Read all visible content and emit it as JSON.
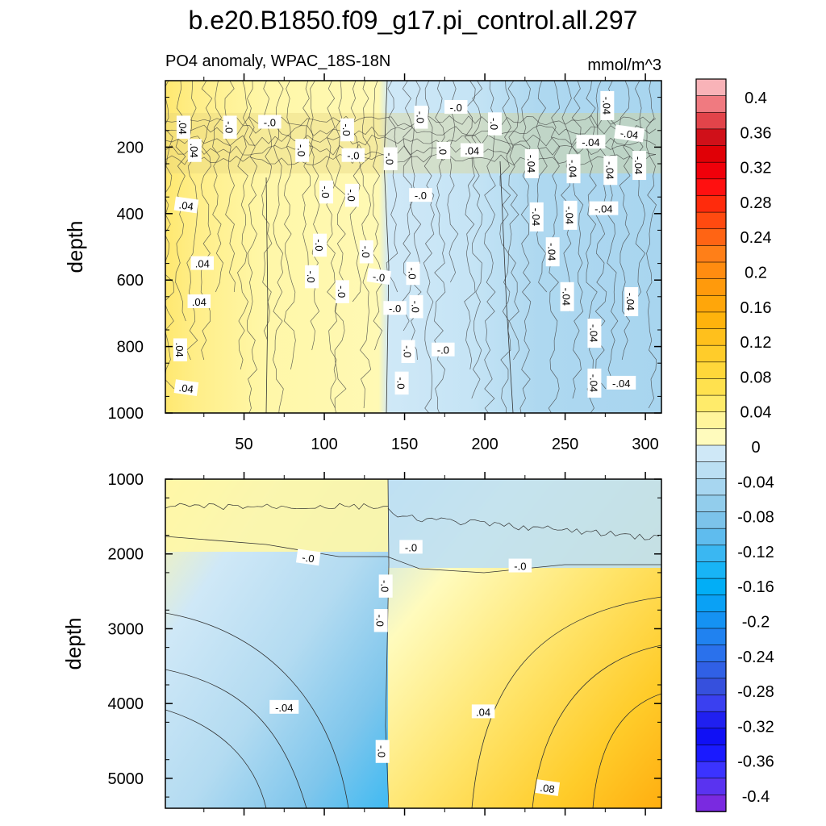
{
  "chart_data": {
    "type": "contour",
    "title": "b.e20.B1850.f09_g17.pi_control.all.297",
    "subtitle_left": "PO4 anomaly, WPAC_18S-18N",
    "subtitle_right": "mmol/m^3",
    "ylabel": "depth",
    "x_ticks": [
      "50",
      "100",
      "150",
      "200",
      "250",
      "300"
    ],
    "x_tick_values": [
      50,
      100,
      150,
      200,
      250,
      300
    ],
    "xlim": [
      1,
      310
    ],
    "panels": [
      {
        "name": "upper",
        "ylim": [
          0,
          1000
        ],
        "y_ticks": [
          "200",
          "400",
          "600",
          "800",
          "1000"
        ],
        "y_tick_values": [
          200,
          400,
          600,
          800,
          1000
        ],
        "contour_labels": [
          {
            "text": ".04",
            "x": 12,
            "y": 140
          },
          {
            "text": "-.0",
            "x": 41,
            "y": 140
          },
          {
            "text": "-.0",
            "x": 66,
            "y": 125
          },
          {
            "text": "-.0",
            "x": 114,
            "y": 148
          },
          {
            "text": "-.0",
            "x": 160,
            "y": 110
          },
          {
            "text": "-.0",
            "x": 182,
            "y": 80
          },
          {
            "text": "-.0",
            "x": 206,
            "y": 130
          },
          {
            "text": "-.04",
            "x": 276,
            "y": 75
          },
          {
            "text": "-.04",
            "x": 290,
            "y": 160
          },
          {
            "text": ".04",
            "x": 19,
            "y": 210
          },
          {
            "text": "-.0",
            "x": 86,
            "y": 210
          },
          {
            "text": "-.0",
            "x": 118,
            "y": 225
          },
          {
            "text": "-.0",
            "x": 141,
            "y": 235
          },
          {
            "text": ".0",
            "x": 174,
            "y": 210
          },
          {
            "text": ".04",
            "x": 192,
            "y": 210
          },
          {
            "text": "-.04",
            "x": 229,
            "y": 250
          },
          {
            "text": "-.04",
            "x": 255,
            "y": 265
          },
          {
            "text": "-.04",
            "x": 266,
            "y": 185
          },
          {
            "text": "-.04",
            "x": 278,
            "y": 270
          },
          {
            "text": "-.04",
            "x": 296,
            "y": 255
          },
          {
            "text": ".04",
            "x": 14,
            "y": 375
          },
          {
            "text": "-.0",
            "x": 101,
            "y": 335
          },
          {
            "text": "-.0",
            "x": 117,
            "y": 345
          },
          {
            "text": "-.0",
            "x": 160,
            "y": 345
          },
          {
            "text": "-.04",
            "x": 232,
            "y": 410
          },
          {
            "text": "-.04",
            "x": 253,
            "y": 405
          },
          {
            "text": "-.04",
            "x": 274,
            "y": 385
          },
          {
            "text": "-.0",
            "x": 97,
            "y": 495
          },
          {
            "text": "-.0",
            "x": 126,
            "y": 515
          },
          {
            "text": ".04",
            "x": 24,
            "y": 550
          },
          {
            "text": "-.04",
            "x": 242,
            "y": 515
          },
          {
            "text": "-.0",
            "x": 92,
            "y": 590
          },
          {
            "text": "-.0",
            "x": 134,
            "y": 590
          },
          {
            "text": "-.0",
            "x": 155,
            "y": 580
          },
          {
            "text": "-.0",
            "x": 111,
            "y": 635
          },
          {
            "text": ".04",
            "x": 22,
            "y": 665
          },
          {
            "text": "-.04",
            "x": 251,
            "y": 650
          },
          {
            "text": "-.04",
            "x": 291,
            "y": 665
          },
          {
            "text": "-.0",
            "x": 144,
            "y": 685
          },
          {
            "text": "-.0",
            "x": 157,
            "y": 680
          },
          {
            "text": ".04",
            "x": 10,
            "y": 810
          },
          {
            "text": "-.0",
            "x": 174,
            "y": 810
          },
          {
            "text": "-.04",
            "x": 268,
            "y": 760
          },
          {
            "text": "-.0",
            "x": 152,
            "y": 815
          },
          {
            "text": ".04",
            "x": 14,
            "y": 925
          },
          {
            "text": "-.0",
            "x": 148,
            "y": 910
          },
          {
            "text": "-.04",
            "x": 268,
            "y": 910
          },
          {
            "text": "-.04",
            "x": 285,
            "y": 910
          }
        ]
      },
      {
        "name": "lower",
        "ylim": [
          1000,
          5400
        ],
        "y_ticks": [
          "1000",
          "2000",
          "3000",
          "4000",
          "5000"
        ],
        "y_tick_values": [
          1000,
          2000,
          3000,
          4000,
          5000
        ],
        "contour_labels": [
          {
            "text": "-.0",
            "x": 90,
            "y": 2050
          },
          {
            "text": "-.0",
            "x": 154,
            "y": 1910
          },
          {
            "text": "-.0",
            "x": 222,
            "y": 2160
          },
          {
            "text": "-.0",
            "x": 138,
            "y": 2430
          },
          {
            "text": "-.0",
            "x": 135,
            "y": 2890
          },
          {
            "text": "-.04",
            "x": 75,
            "y": 4050
          },
          {
            "text": ".04",
            "x": 199,
            "y": 4110
          },
          {
            "text": "-.0",
            "x": 136,
            "y": 4640
          },
          {
            "text": ".08",
            "x": 239,
            "y": 5130
          }
        ]
      }
    ],
    "colorbar": {
      "labels": [
        "0.4",
        "0.36",
        "0.32",
        "0.28",
        "0.24",
        "0.2",
        "0.16",
        "0.12",
        "0.08",
        "0.04",
        "0",
        "-0.04",
        "-0.08",
        "-0.12",
        "-0.16",
        "-0.2",
        "-0.24",
        "-0.28",
        "-0.32",
        "-0.36",
        "-0.4"
      ],
      "values": [
        0.4,
        0.36,
        0.32,
        0.28,
        0.24,
        0.2,
        0.16,
        0.12,
        0.08,
        0.04,
        0,
        -0.04,
        -0.08,
        -0.12,
        -0.16,
        -0.2,
        -0.24,
        -0.28,
        -0.32,
        -0.36,
        -0.4
      ],
      "colors": [
        "#f9b3b8",
        "#f07a80",
        "#e2444a",
        "#d01019",
        "#e00006",
        "#f0000a",
        "#ff1010",
        "#ff2b0c",
        "#ff4a10",
        "#ff6414",
        "#ff7f18",
        "#ff8c10",
        "#ff9a0c",
        "#ffa60a",
        "#ffb30c",
        "#ffc01c",
        "#ffcc2a",
        "#ffd73a",
        "#ffe14e",
        "#ffeb6a",
        "#fff59b",
        "#fffbbd",
        "#cfe8f7",
        "#bbdff3",
        "#a7d6f0",
        "#92cdec",
        "#7cc3ea",
        "#5fbcee",
        "#3ab7f2",
        "#18b4f6",
        "#02aef6",
        "#0aa1f5",
        "#1592f3",
        "#2082f0",
        "#2a71ec",
        "#3060e5",
        "#3650dd",
        "#3a40f0",
        "#2020f0",
        "#1010f5",
        "#1a1aff",
        "#3b33ff",
        "#5a33f0",
        "#7a2ae0"
      ]
    }
  }
}
